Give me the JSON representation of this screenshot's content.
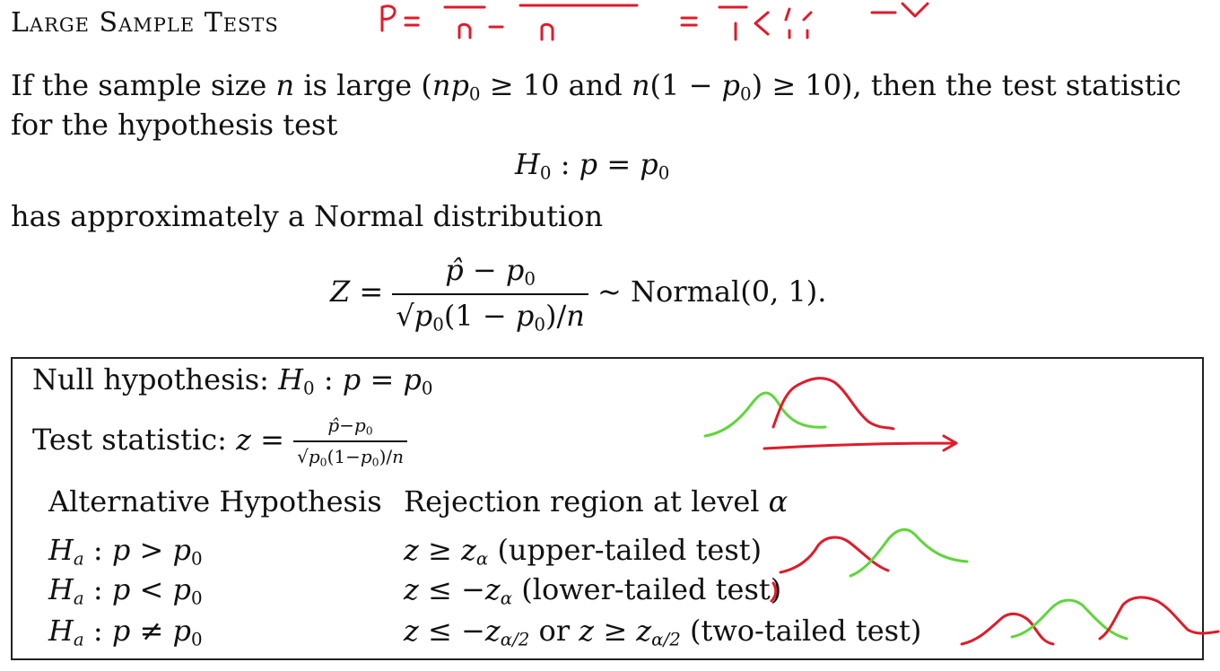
{
  "title": "Large Sample Tests",
  "intro": {
    "line1_a": "If the sample size ",
    "line1_b": " is large (",
    "line1_c": " and ",
    "line1_d": "), then the test statistic",
    "line2": "for the hypothesis test"
  },
  "normal_text": "has approximately a Normal distribution",
  "normal_label": "Normal(0, 1).",
  "box": {
    "null_label": "Null hypothesis:",
    "test_label": "Test statistic:",
    "alt_header": "Alternative Hypothesis",
    "rej_header": "Rejection region at level",
    "rows": [
      {
        "alt": "p > p",
        "rule": "(upper-tailed test)"
      },
      {
        "alt": "p < p",
        "rule": "(lower-tailed test)"
      },
      {
        "alt": "p ≠ p",
        "rule": "(two-tailed test)",
        "or": "or"
      }
    ]
  },
  "colors": {
    "ink_red": "#e01b2a",
    "ink_green": "#5fd63a",
    "text": "#111111"
  }
}
